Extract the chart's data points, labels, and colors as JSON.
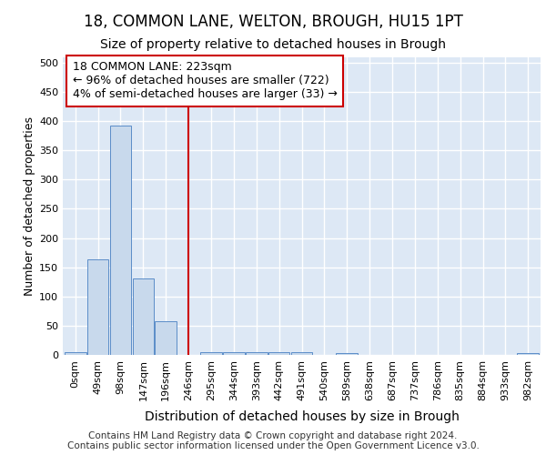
{
  "title1": "18, COMMON LANE, WELTON, BROUGH, HU15 1PT",
  "title2": "Size of property relative to detached houses in Brough",
  "xlabel": "Distribution of detached houses by size in Brough",
  "ylabel": "Number of detached properties",
  "footer1": "Contains HM Land Registry data © Crown copyright and database right 2024.",
  "footer2": "Contains public sector information licensed under the Open Government Licence v3.0.",
  "bin_labels": [
    "0sqm",
    "49sqm",
    "98sqm",
    "147sqm",
    "196sqm",
    "246sqm",
    "295sqm",
    "344sqm",
    "393sqm",
    "442sqm",
    "491sqm",
    "540sqm",
    "589sqm",
    "638sqm",
    "687sqm",
    "737sqm",
    "786sqm",
    "835sqm",
    "884sqm",
    "933sqm",
    "982sqm"
  ],
  "bar_values": [
    5,
    163,
    393,
    131,
    57,
    0,
    5,
    5,
    5,
    5,
    5,
    0,
    3,
    0,
    0,
    0,
    0,
    0,
    0,
    0,
    3
  ],
  "bar_color": "#c8d9ec",
  "bar_edgecolor": "#5b8dc8",
  "reference_line_x": 5.0,
  "reference_line_color": "#cc0000",
  "annotation_text": "18 COMMON LANE: 223sqm\n← 96% of detached houses are smaller (722)\n4% of semi-detached houses are larger (33) →",
  "ylim": [
    0,
    510
  ],
  "yticks": [
    0,
    50,
    100,
    150,
    200,
    250,
    300,
    350,
    400,
    450,
    500
  ],
  "fig_bg_color": "#ffffff",
  "plot_bg_color": "#dde8f5",
  "grid_color": "#ffffff",
  "title1_fontsize": 12,
  "title2_fontsize": 10,
  "annotation_fontsize": 9,
  "ylabel_fontsize": 9,
  "xlabel_fontsize": 10,
  "footer_fontsize": 7.5,
  "tick_fontsize": 8
}
